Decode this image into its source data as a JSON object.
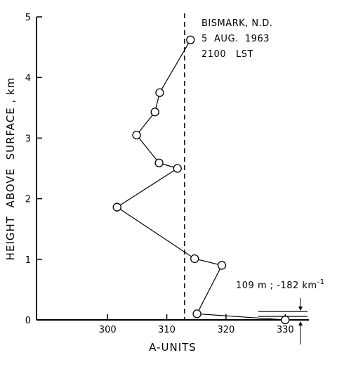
{
  "chart_data": {
    "type": "line",
    "annotation_lines": [
      "BISMARK, N.D.",
      "5  AUG.  1963",
      "2100   LST"
    ],
    "xlabel": "A-UNITS",
    "ylabel": "HEIGHT  ABOVE  SURFACE , km",
    "xlim": [
      288,
      334
    ],
    "ylim": [
      0,
      5
    ],
    "xticks": [
      300,
      310,
      320,
      330
    ],
    "yticks": [
      0,
      1,
      2,
      3,
      4,
      5
    ],
    "reference_line_x": 313,
    "reference_line_style": "dashed",
    "grid": false,
    "series": [
      {
        "x": [
          314.0,
          308.8,
          308.0,
          304.9,
          308.7,
          311.8,
          301.6,
          314.7,
          319.3,
          315.1,
          330.0
        ],
        "y": [
          4.62,
          3.75,
          3.43,
          3.05,
          2.59,
          2.5,
          1.86,
          1.01,
          0.9,
          0.1,
          0.0
        ]
      }
    ],
    "surface_layer_label": "109 m ; -182 km",
    "surface_layer_label_superscript": "-1"
  }
}
